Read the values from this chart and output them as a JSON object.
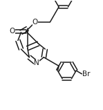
{
  "bg_color": "#ffffff",
  "line_color": "#1a1a1a",
  "line_width": 1.1,
  "font_size_label": 7.5,
  "font_size_br": 7.5,
  "figsize": [
    1.49,
    1.59
  ],
  "dpi": 100,
  "xlim": [
    -0.1,
    1.55
  ],
  "ylim": [
    -0.55,
    1.45
  ]
}
